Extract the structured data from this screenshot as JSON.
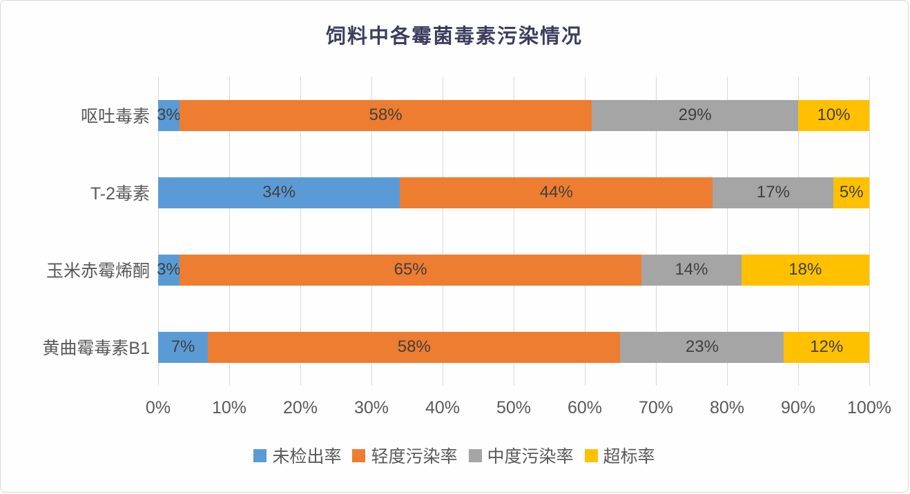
{
  "chart_data": {
    "type": "bar",
    "variant": "horizontal-stacked",
    "title": "饲料中各霉菌毒素污染情况",
    "categories": [
      "呕吐毒素",
      "T-2毒素",
      "玉米赤霉烯酮",
      "黄曲霉毒素B1"
    ],
    "series": [
      {
        "name": "未检出率",
        "color": "#5b9bd5",
        "values": [
          3,
          34,
          3,
          7
        ]
      },
      {
        "name": "轻度污染率",
        "color": "#ed7d31",
        "values": [
          58,
          44,
          65,
          58
        ]
      },
      {
        "name": "中度污染率",
        "color": "#a5a5a5",
        "values": [
          29,
          17,
          14,
          23
        ]
      },
      {
        "name": "超标率",
        "color": "#ffc000",
        "values": [
          10,
          5,
          18,
          12
        ]
      }
    ],
    "data_labels": [
      [
        "3%",
        "58%",
        "29%",
        "10%"
      ],
      [
        "34%",
        "44%",
        "17%",
        "5%"
      ],
      [
        "3%",
        "65%",
        "14%",
        "18%"
      ],
      [
        "7%",
        "58%",
        "23%",
        "12%"
      ]
    ],
    "x_ticks": [
      "0%",
      "10%",
      "20%",
      "30%",
      "40%",
      "50%",
      "60%",
      "70%",
      "80%",
      "90%",
      "100%"
    ],
    "xlim": [
      0,
      100
    ],
    "value_suffix": "%",
    "grid": "vertical",
    "legend_position": "bottom",
    "colors": {
      "title_text": "#3d3d5e",
      "axis_text": "#595959",
      "data_label_text": "#3f3f3f",
      "gridline": "#d9d9d9",
      "canvas_border": "#d3d7dc"
    }
  }
}
